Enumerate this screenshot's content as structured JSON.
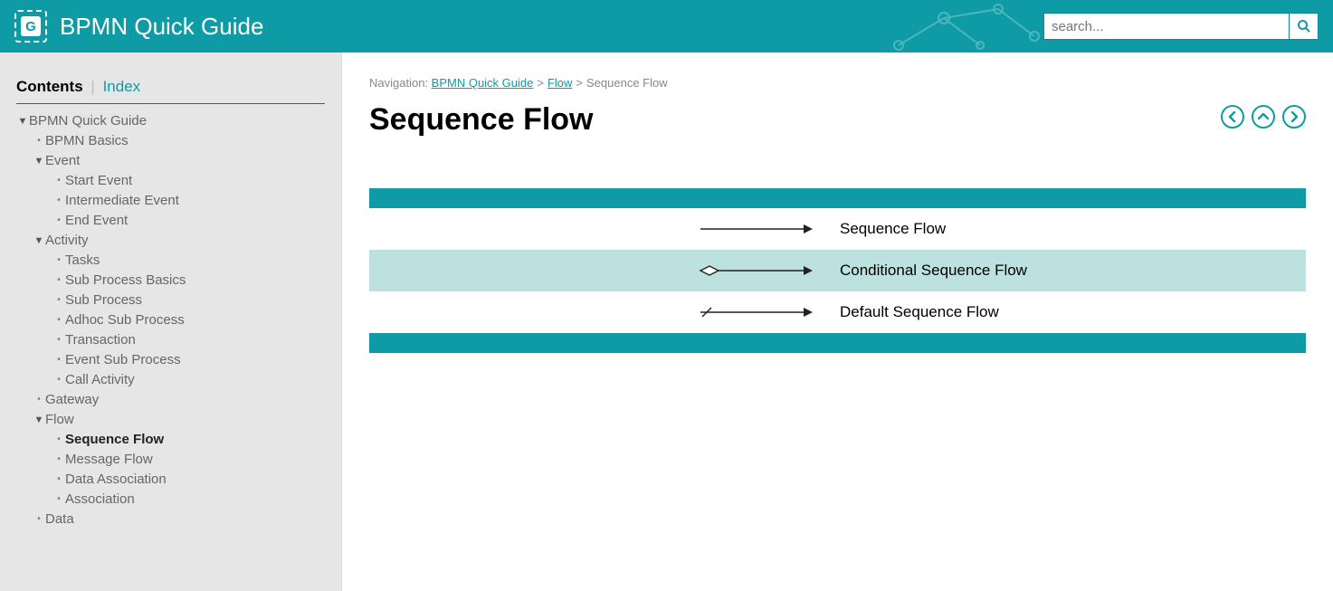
{
  "colors": {
    "primary": "#0e9ba5",
    "sidebar_bg": "#e6e6e6",
    "row_alt_bg": "#bde1df",
    "text_muted": "#666666",
    "link": "#0e9ba5"
  },
  "header": {
    "logo_letter": "G",
    "title": "BPMN Quick Guide",
    "search_placeholder": "search..."
  },
  "sidebar": {
    "tab_contents": "Contents",
    "tab_index": "Index",
    "selected_tab": "contents",
    "tree": {
      "root": "BPMN Quick Guide",
      "items": [
        {
          "label": "BPMN Basics",
          "leaf": true
        },
        {
          "label": "Event",
          "expanded": true,
          "children": [
            {
              "label": "Start Event"
            },
            {
              "label": "Intermediate Event"
            },
            {
              "label": "End Event"
            }
          ]
        },
        {
          "label": "Activity",
          "expanded": true,
          "children": [
            {
              "label": "Tasks"
            },
            {
              "label": "Sub Process Basics"
            },
            {
              "label": "Sub Process"
            },
            {
              "label": "Adhoc Sub Process"
            },
            {
              "label": "Transaction"
            },
            {
              "label": "Event Sub Process"
            },
            {
              "label": "Call Activity"
            }
          ]
        },
        {
          "label": "Gateway",
          "leaf": true
        },
        {
          "label": "Flow",
          "expanded": true,
          "children": [
            {
              "label": "Sequence Flow",
              "selected": true
            },
            {
              "label": "Message Flow"
            },
            {
              "label": "Data Association"
            },
            {
              "label": "Association"
            }
          ]
        },
        {
          "label": "Data",
          "leaf": true
        }
      ]
    }
  },
  "breadcrumb": {
    "prefix": "Navigation:",
    "parts": [
      {
        "label": "BPMN Quick Guide",
        "link": true
      },
      {
        "label": "Flow",
        "link": true
      },
      {
        "label": "Sequence Flow",
        "link": false
      }
    ],
    "separator": ">"
  },
  "page": {
    "title": "Sequence Flow"
  },
  "flow_table": {
    "type": "table",
    "bar_color": "#0e9ba5",
    "row_alt_color": "#bde1df",
    "arrow_color": "#222222",
    "rows": [
      {
        "kind": "plain",
        "label": "Sequence Flow",
        "alt": false
      },
      {
        "kind": "conditional",
        "label": "Conditional Sequence Flow",
        "alt": true
      },
      {
        "kind": "default",
        "label": "Default Sequence Flow",
        "alt": false
      }
    ]
  }
}
